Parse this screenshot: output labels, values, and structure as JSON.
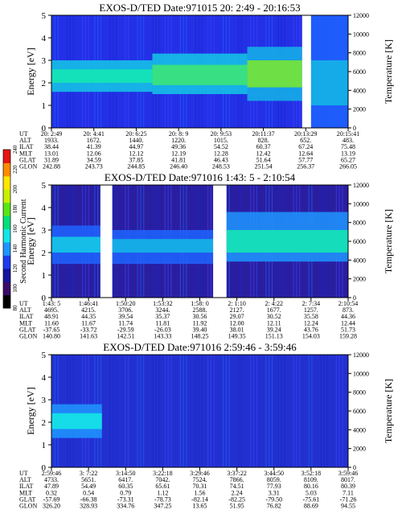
{
  "colorbar": {
    "label": "Second Harmonic Current",
    "ticks": [
      "240",
      "220",
      "200",
      "180",
      "160",
      "140",
      "120",
      "100",
      "80"
    ],
    "colors": [
      "#000000",
      "#3a0a6a",
      "#1414a0",
      "#1e3cf0",
      "#1e96ff",
      "#14e6e6",
      "#00e07a",
      "#5ae614",
      "#c8f000",
      "#ffe600",
      "#ff8c00",
      "#e61414"
    ]
  },
  "chart_data": [
    {
      "type": "heatmap",
      "title": "EXOS-D/TED   Date:971015  20: 2:49 - 20:16:53",
      "ylabel": "Energy [eV]",
      "ylabel_right": "Temperature [K]",
      "yticks": [
        "0",
        "1",
        "2",
        "3",
        "4",
        "5"
      ],
      "ylim": [
        0,
        5
      ],
      "yticks_right": [
        "0",
        "2000",
        "4000",
        "6000",
        "8000",
        "10000",
        "12000"
      ],
      "ylim_right": [
        0,
        12000
      ],
      "background": "#2330e6",
      "gaps": [
        [
          0.845,
          0.875
        ]
      ],
      "bands": [
        {
          "x0": 0.0,
          "x1": 0.34,
          "ylo": 1.6,
          "yhi": 3.0,
          "core_lo": 2.0,
          "core_hi": 2.6,
          "color": "#14c8e6",
          "core": "#14e6b4"
        },
        {
          "x0": 0.34,
          "x1": 0.66,
          "ylo": 1.5,
          "yhi": 3.3,
          "core_lo": 1.9,
          "core_hi": 2.8,
          "color": "#14c8e6",
          "core": "#3ce678"
        },
        {
          "x0": 0.66,
          "x1": 0.845,
          "ylo": 1.2,
          "yhi": 3.6,
          "core_lo": 1.8,
          "core_hi": 3.0,
          "color": "#14b4e6",
          "core": "#78e632"
        },
        {
          "x0": 0.875,
          "x1": 1.0,
          "ylo": 0.0,
          "yhi": 5.0,
          "core_lo": 1.0,
          "core_hi": 3.0,
          "color": "#1e64ff",
          "core": "#14b4e6"
        }
      ],
      "table": {
        "row_labels": [
          "UT",
          "ALT",
          "ILAT",
          "MLT",
          "GLAT",
          "GLON"
        ],
        "columns": [
          [
            "20: 2:49",
            "1933.",
            "38.44",
            "13.01",
            "31.89",
            "242.88"
          ],
          [
            "20: 4:41",
            "1672.",
            "41.39",
            "12.06",
            "34.59",
            "243.73"
          ],
          [
            "20: 6:25",
            "1440.",
            "44.97",
            "12.12",
            "37.85",
            "244.85"
          ],
          [
            "20: 8: 9",
            "1220.",
            "49.36",
            "12.19",
            "41.81",
            "246.40"
          ],
          [
            "20: 9:53",
            "1015.",
            "54.52",
            "12.28",
            "46.43",
            "248.53"
          ],
          [
            "20:11:37",
            "828.",
            "60.37",
            "12.42",
            "51.64",
            "251.54"
          ],
          [
            "20:13:29",
            "652.",
            "67.24",
            "12.64",
            "57.77",
            "256.37"
          ],
          [
            "20:15:41",
            "483.",
            "75.48",
            "13.19",
            "65.27",
            "266.05"
          ]
        ]
      }
    },
    {
      "type": "heatmap",
      "title": "EXOS-D/TED   Date:971016  1:43: 5 - 2:10:54",
      "ylabel": "Energy [eV]",
      "ylabel_right": "Temperature [K]",
      "yticks": [
        "0",
        "1",
        "2",
        "3",
        "4",
        "5"
      ],
      "ylim": [
        0,
        5
      ],
      "yticks_right": [
        "0",
        "2000",
        "4000",
        "6000",
        "8000",
        "10000",
        "12000"
      ],
      "ylim_right": [
        0,
        12000
      ],
      "background": "#2a1ea0",
      "gaps": [
        [
          0.165,
          0.205
        ],
        [
          0.545,
          0.59
        ]
      ],
      "bands": [
        {
          "x0": 0.0,
          "x1": 0.165,
          "ylo": 1.5,
          "yhi": 3.2,
          "core_lo": 2.0,
          "core_hi": 2.7,
          "color": "#1e64ff",
          "core": "#14c8e6"
        },
        {
          "x0": 0.205,
          "x1": 0.545,
          "ylo": 1.5,
          "yhi": 3.0,
          "core_lo": 2.0,
          "core_hi": 2.6,
          "color": "#1e64ff",
          "core": "#14b4e6"
        },
        {
          "x0": 0.59,
          "x1": 1.0,
          "ylo": 1.6,
          "yhi": 3.8,
          "core_lo": 2.0,
          "core_hi": 3.0,
          "color": "#1e96ff",
          "core": "#14e6b4"
        }
      ],
      "table": {
        "row_labels": [
          "UT",
          "ALT",
          "ILAT",
          "MLT",
          "GLAT",
          "GLON"
        ],
        "columns": [
          [
            "1:43: 5",
            "4695.",
            "48.91",
            "11.60",
            "-37.65",
            "140.80"
          ],
          [
            "1:46:41",
            "4215.",
            "44.35",
            "11.67",
            "-33.72",
            "141.63"
          ],
          [
            "1:50:20",
            "3706.",
            "39.54",
            "11.74",
            "-29.59",
            "142.51"
          ],
          [
            "1:53:32",
            "3244.",
            "35.37",
            "11.81",
            "-26.03",
            "143.33"
          ],
          [
            "1:58: 0",
            "2588.",
            "30.56",
            "11.92",
            "39.40",
            "148.25"
          ],
          [
            "2: 1:10",
            "2127.",
            "29.07",
            "12.00",
            "38.01",
            "149.35"
          ],
          [
            "2: 4:22",
            "1677.",
            "30.52",
            "12.11",
            "39.24",
            "151.13"
          ],
          [
            "2: 7:34",
            "1257.",
            "35.58",
            "12.24",
            "43.76",
            "154.03"
          ],
          [
            "2:10:54",
            "873.",
            "44.36",
            "12.44",
            "51.73",
            "159.28"
          ]
        ]
      }
    },
    {
      "type": "heatmap",
      "title": "EXOS-D/TED   Date:971016  2:59:46 - 3:59:46",
      "ylabel": "Energy [eV]",
      "ylabel_right": "Temperature [K]",
      "yticks": [
        "0",
        "1",
        "2",
        "3",
        "4",
        "5"
      ],
      "ylim": [
        0,
        5
      ],
      "yticks_right": [
        "0",
        "2000",
        "4000",
        "6000",
        "8000",
        "10000",
        "12000"
      ],
      "ylim_right": [
        0,
        12000
      ],
      "background": "#2330d0",
      "gaps": [],
      "bands": [
        {
          "x0": 0.0,
          "x1": 0.17,
          "ylo": 1.3,
          "yhi": 2.8,
          "core_lo": 1.7,
          "core_hi": 2.4,
          "color": "#1e96ff",
          "core": "#14e6e6"
        }
      ],
      "table": {
        "row_labels": [
          "UT",
          "ALT",
          "ILAT",
          "MLT",
          "GLAT",
          "GLON"
        ],
        "columns": [
          [
            "2:59:46",
            "4733.",
            "47.89",
            "0.32",
            "-57.69",
            "326.20"
          ],
          [
            "3: 7:22",
            "5651.",
            "54.49",
            "0.54",
            "-66.38",
            "328.93"
          ],
          [
            "3:14:50",
            "6417.",
            "60.35",
            "0.79",
            "-73.31",
            "334.76"
          ],
          [
            "3:22:18",
            "7042.",
            "65.61",
            "1.12",
            "-78.73",
            "347.25"
          ],
          [
            "3:29:46",
            "7524.",
            "70.31",
            "1.56",
            "-82.14",
            "13.65"
          ],
          [
            "3:37:22",
            "7866.",
            "74.51",
            "2.24",
            "-82.25",
            "51.95"
          ],
          [
            "3:44:50",
            "8059.",
            "77.93",
            "3.31",
            "-79.50",
            "76.82"
          ],
          [
            "3:52:18",
            "8109.",
            "80.16",
            "5.03",
            "-75.61",
            "88.69"
          ],
          [
            "3:59:46",
            "8017.",
            "80.39",
            "7.11",
            "-71.26",
            "94.55"
          ]
        ]
      }
    }
  ]
}
